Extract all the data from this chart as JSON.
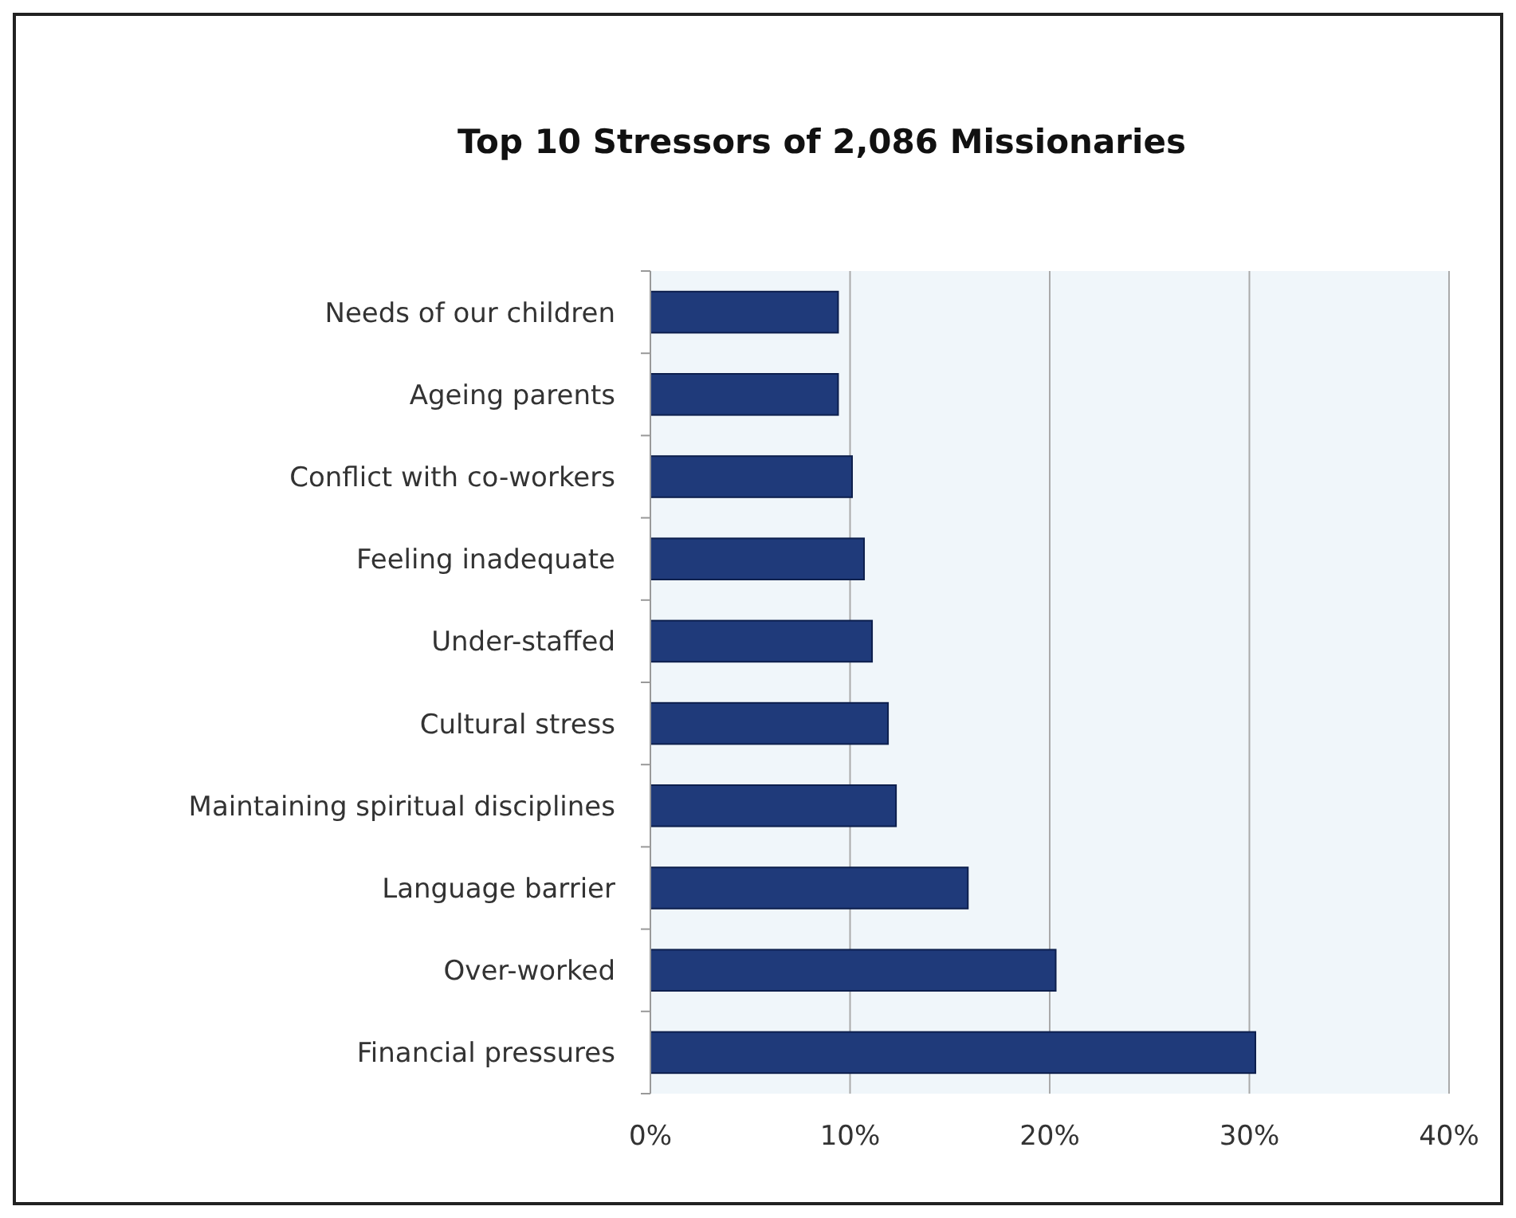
{
  "chart_data": {
    "type": "bar",
    "orientation": "horizontal",
    "title": "Top 10 Stressors of 2,086 Missionaries",
    "categories": [
      "Needs of our children",
      "Ageing parents",
      "Conflict with co-workers",
      "Feeling inadequate",
      "Under-staffed",
      "Cultural stress",
      "Maintaining spiritual disciplines",
      "Language barrier",
      "Over-worked",
      "Financial pressures"
    ],
    "values": [
      9.4,
      9.4,
      10.1,
      10.7,
      11.1,
      11.9,
      12.3,
      15.9,
      20.3,
      30.3
    ],
    "color": "#1f3a7a",
    "xlim": [
      0,
      40
    ],
    "xticks": [
      {
        "value": 0,
        "label": "0%"
      },
      {
        "value": 10,
        "label": "10%"
      },
      {
        "value": 20,
        "label": "20%"
      },
      {
        "value": 30,
        "label": "30%"
      },
      {
        "value": 40,
        "label": "40%"
      }
    ],
    "grid": "x"
  }
}
